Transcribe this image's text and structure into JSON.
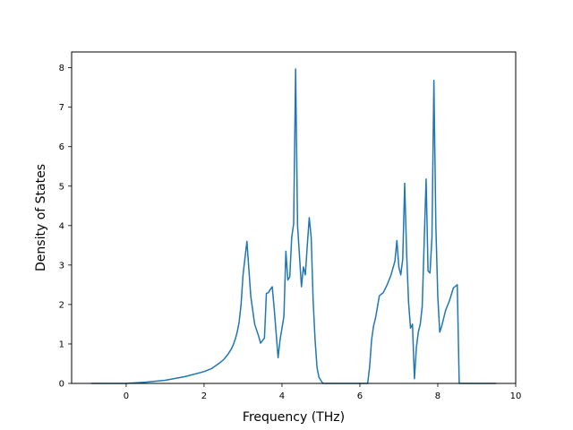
{
  "chart_data": {
    "type": "line",
    "title": "",
    "xlabel": "Frequency (THz)",
    "ylabel": "Density of States",
    "xlim": [
      -1.4,
      10.0
    ],
    "ylim": [
      0,
      8.4
    ],
    "xticks": [
      0,
      2,
      4,
      6,
      8,
      10
    ],
    "yticks": [
      0,
      1,
      2,
      3,
      4,
      5,
      6,
      7,
      8
    ],
    "grid": false,
    "legend": "none",
    "colors": {
      "line": "#1f77b4"
    },
    "series": [
      {
        "x": [
          -0.9,
          -0.5,
          0.0,
          0.5,
          1.0,
          1.5,
          2.0,
          2.2,
          2.4,
          2.5,
          2.6,
          2.7,
          2.75,
          2.8,
          2.85,
          2.9,
          2.95,
          3.0,
          3.1,
          3.2,
          3.3,
          3.4,
          3.45,
          3.55,
          3.6,
          3.65,
          3.7,
          3.75,
          3.8,
          3.9,
          3.95,
          4.0,
          4.05,
          4.1,
          4.15,
          4.2,
          4.25,
          4.3,
          4.35,
          4.4,
          4.5,
          4.55,
          4.6,
          4.65,
          4.7,
          4.75,
          4.8,
          4.85,
          4.9,
          4.95,
          5.05,
          5.15,
          5.3,
          6.0,
          6.2,
          6.25,
          6.3,
          6.35,
          6.4,
          6.5,
          6.6,
          6.7,
          6.8,
          6.9,
          6.95,
          7.0,
          7.05,
          7.1,
          7.15,
          7.2,
          7.25,
          7.3,
          7.35,
          7.4,
          7.45,
          7.5,
          7.55,
          7.6,
          7.7,
          7.75,
          7.8,
          7.85,
          7.9,
          7.95,
          8.0,
          8.05,
          8.1,
          8.15,
          8.2,
          8.3,
          8.4,
          8.5,
          8.55,
          8.6,
          8.65,
          8.7,
          9.0,
          9.5
        ],
        "y": [
          0.0,
          0.0,
          0.0,
          0.03,
          0.08,
          0.17,
          0.3,
          0.38,
          0.52,
          0.6,
          0.72,
          0.87,
          0.98,
          1.12,
          1.3,
          1.55,
          2.0,
          2.75,
          3.6,
          2.2,
          1.5,
          1.2,
          1.02,
          1.15,
          2.28,
          2.3,
          2.38,
          2.45,
          1.9,
          0.65,
          1.1,
          1.4,
          1.7,
          3.35,
          2.62,
          2.7,
          3.7,
          4.05,
          7.97,
          4.0,
          2.45,
          2.95,
          2.75,
          3.5,
          4.2,
          3.7,
          2.1,
          1.1,
          0.4,
          0.15,
          0.0,
          0.0,
          0.0,
          0.0,
          0.0,
          0.42,
          1.1,
          1.45,
          1.65,
          2.22,
          2.3,
          2.5,
          2.75,
          3.1,
          3.62,
          2.95,
          2.75,
          3.15,
          5.07,
          3.3,
          2.05,
          1.4,
          1.5,
          0.12,
          0.9,
          1.3,
          1.5,
          1.95,
          5.18,
          2.85,
          2.8,
          3.7,
          7.68,
          4.0,
          2.2,
          1.3,
          1.45,
          1.65,
          1.85,
          2.1,
          2.42,
          2.5,
          0.0,
          0.0,
          0.0,
          0.0,
          0.0,
          0.0
        ]
      }
    ]
  }
}
